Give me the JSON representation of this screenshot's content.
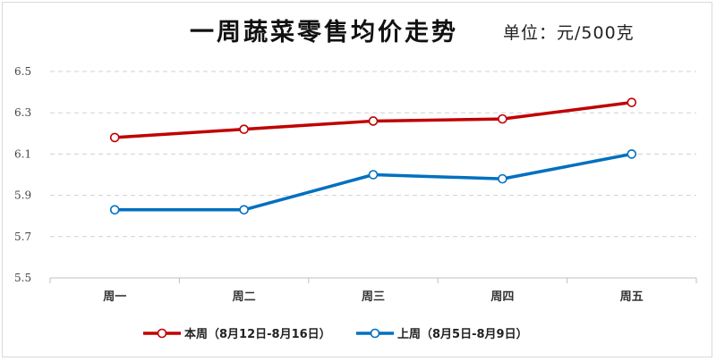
{
  "chart_data": {
    "type": "line",
    "title": "一周蔬菜零售均价走势",
    "unit": "单位：元/500克",
    "categories": [
      "周一",
      "周二",
      "周三",
      "周四",
      "周五"
    ],
    "yticks": [
      "5.5",
      "5.7",
      "5.9",
      "6.1",
      "6.3",
      "6.5"
    ],
    "ylim": [
      5.5,
      6.5
    ],
    "grid": true,
    "legend_position": "bottom",
    "series": [
      {
        "name": "本周（8月12日-8月16日）",
        "color": "#c00000",
        "values": [
          6.18,
          6.22,
          6.26,
          6.27,
          6.35
        ]
      },
      {
        "name": "上周（8月5日-8月9日）",
        "color": "#0070c0",
        "values": [
          5.83,
          5.83,
          6.0,
          5.98,
          6.1
        ]
      }
    ]
  }
}
